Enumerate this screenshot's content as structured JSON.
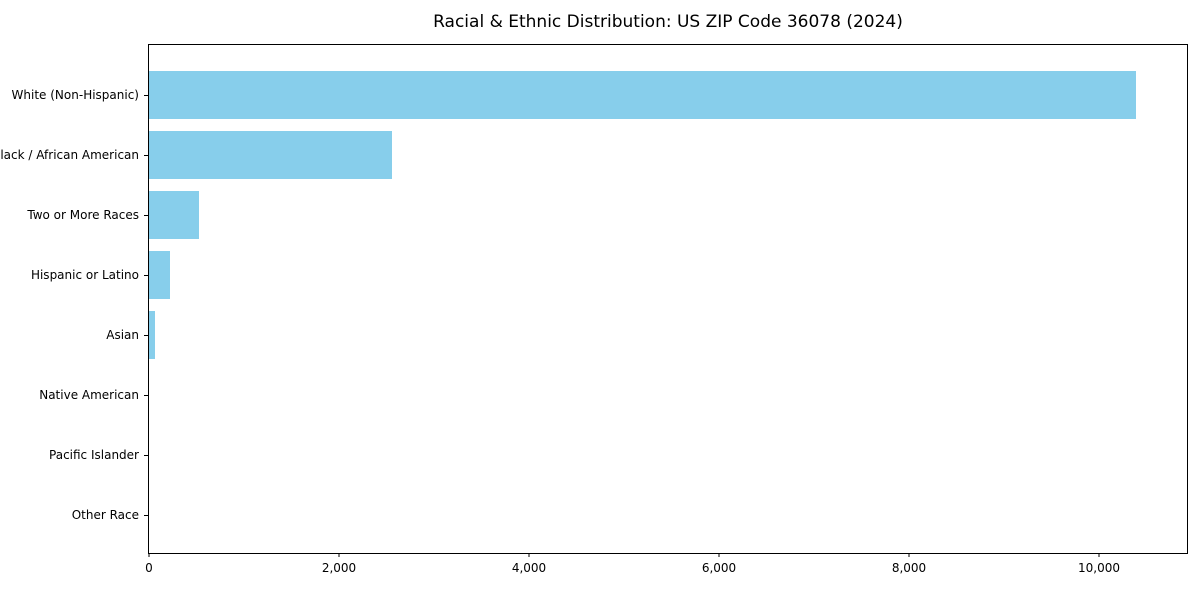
{
  "chart_data": {
    "type": "bar",
    "orientation": "horizontal",
    "title": "Racial & Ethnic Distribution: US ZIP Code 36078 (2024)",
    "categories": [
      "White (Non-Hispanic)",
      "Black / African American",
      "Two or More Races",
      "Hispanic or Latino",
      "Asian",
      "Native American",
      "Pacific Islander",
      "Other Race"
    ],
    "values": [
      10390,
      2560,
      525,
      220,
      60,
      0,
      0,
      0
    ],
    "xlabel": "",
    "ylabel": "",
    "xlim": [
      0,
      10926
    ],
    "x_ticks": [
      {
        "value": 0,
        "label": "0"
      },
      {
        "value": 2000,
        "label": "2,000"
      },
      {
        "value": 4000,
        "label": "4,000"
      },
      {
        "value": 6000,
        "label": "6,000"
      },
      {
        "value": 8000,
        "label": "8,000"
      },
      {
        "value": 10000,
        "label": "10,000"
      }
    ],
    "bar_color": "#87CEEB",
    "axis_color": "#000000",
    "background_color": "#ffffff",
    "grid": false,
    "legend": "none"
  }
}
